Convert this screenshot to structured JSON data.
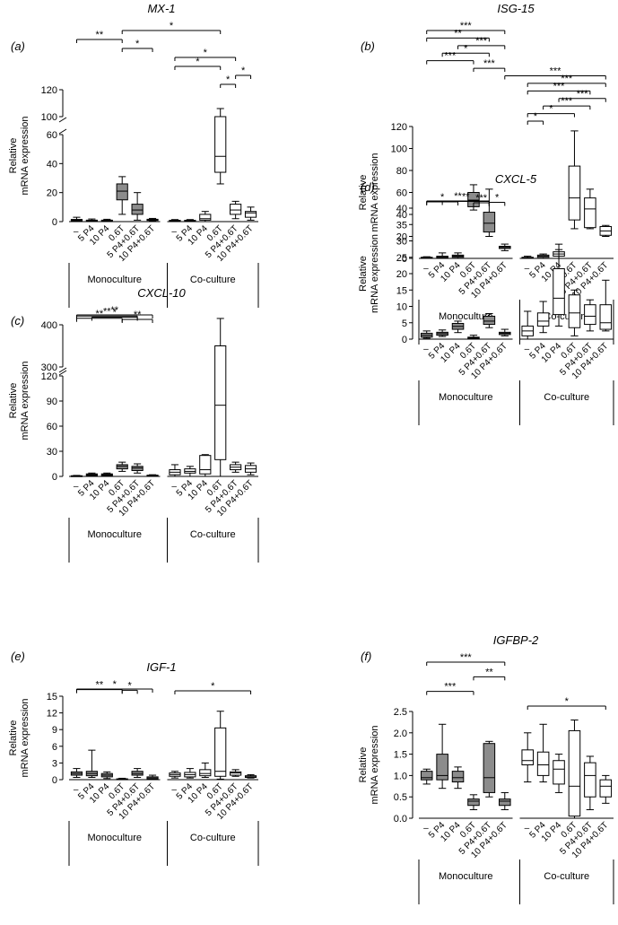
{
  "chart_data": [
    {
      "type": "box",
      "panel_label": "(a)",
      "title": "MX-1",
      "ylabel": [
        "Relative",
        "mRNA expression"
      ],
      "yaxis": {
        "break": true,
        "lower": [
          0,
          60
        ],
        "lower_ticks": [
          0,
          20,
          40,
          60
        ],
        "upper": [
          100,
          120
        ],
        "upper_ticks": [
          100,
          120
        ]
      },
      "categories": [
        "–",
        "5 P4",
        "10 P4",
        "0.6T",
        "5 P4+0.6T",
        "10 P4+0.6T"
      ],
      "groups": [
        {
          "name": "Monoculture",
          "fill": "#8c8c8c",
          "boxes": [
            [
              0,
              0.5,
              1,
              1.5,
              3
            ],
            [
              0,
              0.3,
              0.6,
              1,
              1.8
            ],
            [
              0,
              0.3,
              0.6,
              1,
              1.6
            ],
            [
              5,
              15,
              21,
              26,
              31
            ],
            [
              1,
              5,
              8,
              12,
              20
            ],
            [
              0.3,
              0.8,
              1.2,
              1.6,
              2.2
            ]
          ]
        },
        {
          "name": "Co-culture",
          "fill": "#ffffff",
          "boxes": [
            [
              0,
              0.3,
              0.6,
              0.9,
              1.4
            ],
            [
              0,
              0.3,
              0.6,
              0.9,
              1.4
            ],
            [
              0,
              1,
              2,
              5,
              7
            ],
            [
              26,
              34,
              45,
              70,
              106
            ],
            [
              2,
              5,
              8,
              12,
              14
            ],
            [
              1,
              3,
              6,
              7,
              10
            ]
          ]
        }
      ],
      "annotations": [
        {
          "from": 3,
          "to": 9,
          "label": "*"
        },
        {
          "from": 0,
          "to": 3,
          "label": "**"
        },
        {
          "from": 3,
          "to": 5,
          "label": "*"
        },
        {
          "from": 6,
          "to": 10,
          "label": "*"
        },
        {
          "from": 6,
          "to": 9,
          "label": "*"
        },
        {
          "from": 10,
          "to": 11,
          "label": "*"
        },
        {
          "from": 9,
          "to": 10,
          "label": "*"
        }
      ]
    },
    {
      "type": "box",
      "panel_label": "(b)",
      "title": "ISG-15",
      "ylabel": [
        "Relative",
        "mRNA expression"
      ],
      "yaxis": {
        "break": false,
        "range": [
          0,
          120
        ],
        "ticks": [
          0,
          20,
          40,
          60,
          80,
          100,
          120
        ]
      },
      "categories": [
        "–",
        "5 P4",
        "10 P4",
        "0.6T",
        "5 P4+0.6T",
        "10 P4+0.6T"
      ],
      "groups": [
        {
          "name": "Monoculture",
          "fill": "#8c8c8c",
          "boxes": [
            [
              0,
              0.3,
              0.6,
              1,
              1.5
            ],
            [
              0,
              0.5,
              1.5,
              2,
              5
            ],
            [
              0,
              1,
              2,
              3,
              5
            ],
            [
              44,
              47,
              53,
              60,
              67
            ],
            [
              20,
              24,
              32,
              42,
              63
            ],
            [
              7,
              9,
              10,
              11,
              13
            ]
          ]
        },
        {
          "name": "Co-culture",
          "fill": "#ffffff",
          "boxes": [
            [
              0,
              0.3,
              0.6,
              1,
              2
            ],
            [
              0,
              1,
              2,
              3,
              4
            ],
            [
              0,
              2,
              4,
              6,
              8
            ],
            [
              27,
              35,
              55,
              84,
              116
            ],
            [
              27,
              28,
              45,
              55,
              63
            ],
            [
              20,
              21,
              25,
              29,
              30
            ]
          ]
        }
      ],
      "annotations": [
        {
          "from": 0,
          "to": 5,
          "label": "***"
        },
        {
          "from": 0,
          "to": 4,
          "label": "**"
        },
        {
          "from": 2,
          "to": 5,
          "label": "***"
        },
        {
          "from": 1,
          "to": 4,
          "label": "*"
        },
        {
          "from": 0,
          "to": 3,
          "label": "***"
        },
        {
          "from": 3,
          "to": 5,
          "label": "***"
        },
        {
          "from": 5,
          "to": 11,
          "label": "***"
        },
        {
          "from": 6,
          "to": 11,
          "label": "***"
        },
        {
          "from": 6,
          "to": 10,
          "label": "***"
        },
        {
          "from": 8,
          "to": 11,
          "label": "***"
        },
        {
          "from": 7,
          "to": 10,
          "label": "***"
        },
        {
          "from": 6,
          "to": 9,
          "label": "*"
        },
        {
          "from": 6,
          "to": 7,
          "label": "*"
        }
      ]
    },
    {
      "type": "box",
      "panel_label": "(c)",
      "title": "CXCL-10",
      "ylabel": [
        "Relative",
        "mRNA expression"
      ],
      "yaxis": {
        "break": true,
        "lower": [
          0,
          120
        ],
        "lower_ticks": [
          0,
          30,
          60,
          90,
          120
        ],
        "upper": [
          300,
          400
        ],
        "upper_ticks": [
          300,
          400
        ]
      },
      "categories": [
        "–",
        "5 P4",
        "10 P4",
        "0.6T",
        "5 P4+0.6T",
        "10 P4+0.6T"
      ],
      "groups": [
        {
          "name": "Monoculture",
          "fill": "#8c8c8c",
          "boxes": [
            [
              0,
              0.2,
              0.5,
              0.8,
              1.2
            ],
            [
              0,
              1,
              2,
              3,
              4
            ],
            [
              0,
              1,
              2,
              3,
              4
            ],
            [
              6,
              9,
              12,
              14,
              17
            ],
            [
              4,
              7,
              10,
              12,
              15
            ],
            [
              0,
              0.5,
              1,
              1.5,
              2
            ]
          ]
        },
        {
          "name": "Co-culture",
          "fill": "#ffffff",
          "boxes": [
            [
              0,
              2,
              5,
              8,
              14
            ],
            [
              0,
              4,
              6,
              9,
              12
            ],
            [
              0,
              3,
              8,
              25,
              26
            ],
            [
              0,
              20,
              85,
              350,
              415
            ],
            [
              5,
              8,
              11,
              14,
              17
            ],
            [
              2,
              5,
              9,
              13,
              16
            ]
          ]
        }
      ],
      "annotations": [
        {
          "from": 0,
          "to": 5,
          "label": "**"
        },
        {
          "from": 0,
          "to": 4,
          "label": "**"
        },
        {
          "from": 1,
          "to": 4,
          "label": "*"
        },
        {
          "from": 0,
          "to": 3,
          "label": "**"
        },
        {
          "from": 3,
          "to": 5,
          "label": "**"
        }
      ]
    },
    {
      "type": "box",
      "panel_label": "(d)",
      "title": "CXCL-5",
      "ylabel": [
        "Relative",
        "mRNA expression"
      ],
      "yaxis": {
        "break": false,
        "range": [
          0,
          40
        ],
        "ticks": [
          0,
          5,
          10,
          15,
          20,
          25,
          30,
          35,
          40
        ]
      },
      "categories": [
        "–",
        "5 P4",
        "10 P4",
        "0.6T",
        "5 P4+0.6T",
        "10 P4+0.6T"
      ],
      "groups": [
        {
          "name": "Monoculture",
          "fill": "#8c8c8c",
          "boxes": [
            [
              0.3,
              0.6,
              1.2,
              1.8,
              2.5
            ],
            [
              0.8,
              1.2,
              1.7,
              2.1,
              2.8
            ],
            [
              2,
              3,
              3.9,
              4.8,
              5.5
            ],
            [
              0,
              0.2,
              0.4,
              0.6,
              1.2
            ],
            [
              3.5,
              4.5,
              5.5,
              7,
              7.8
            ],
            [
              1,
              1.4,
              1.8,
              2.1,
              3
            ]
          ]
        },
        {
          "name": "Co-culture",
          "fill": "#ffffff",
          "boxes": [
            [
              0,
              1,
              2.5,
              4,
              8.5
            ],
            [
              2,
              4,
              5.5,
              8,
              11.5
            ],
            [
              4,
              7.5,
              12.5,
              21.5,
              29
            ],
            [
              1,
              3.5,
              8,
              13.5,
              15
            ],
            [
              2.5,
              4.5,
              7,
              10.5,
              12
            ],
            [
              2.5,
              3,
              5,
              10.5,
              18
            ]
          ]
        }
      ],
      "annotations": [
        {
          "from": 0,
          "to": 4,
          "label": "**"
        },
        {
          "from": 1,
          "to": 4,
          "label": "**"
        },
        {
          "from": 0,
          "to": 2,
          "label": "*"
        },
        {
          "from": 4,
          "to": 5,
          "label": "*"
        },
        {
          "from": 3,
          "to": 4,
          "label": "***"
        }
      ]
    },
    {
      "type": "box",
      "panel_label": "(e)",
      "title": "IGF-1",
      "ylabel": [
        "Relative",
        "mRNA expression"
      ],
      "yaxis": {
        "break": false,
        "range": [
          0,
          15
        ],
        "ticks": [
          0,
          3,
          6,
          9,
          12,
          15
        ]
      },
      "categories": [
        "–",
        "5 P4",
        "10 P4",
        "0.6T",
        "5 P4+0.6T",
        "10 P4+0.6T"
      ],
      "groups": [
        {
          "name": "Monoculture",
          "fill": "#8c8c8c",
          "boxes": [
            [
              0.4,
              0.8,
              1.1,
              1.4,
              2
            ],
            [
              0.4,
              0.7,
              1.1,
              1.5,
              5.3
            ],
            [
              0.2,
              0.5,
              0.8,
              1.1,
              1.4
            ],
            [
              0,
              0.05,
              0.1,
              0.15,
              0.25
            ],
            [
              0.4,
              0.8,
              1.1,
              1.5,
              2
            ],
            [
              0,
              0.1,
              0.3,
              0.5,
              0.8
            ]
          ]
        },
        {
          "name": "Co-culture",
          "fill": "#ffffff",
          "boxes": [
            [
              0.3,
              0.6,
              0.9,
              1.2,
              1.5
            ],
            [
              0.3,
              0.5,
              0.9,
              1.3,
              2
            ],
            [
              0.4,
              0.7,
              1.1,
              1.8,
              3
            ],
            [
              0.1,
              0.6,
              1.5,
              9.3,
              12.3
            ],
            [
              0.6,
              0.8,
              1.2,
              1.4,
              1.8
            ],
            [
              0.3,
              0.4,
              0.6,
              0.7,
              0.9
            ]
          ]
        }
      ],
      "annotations": [
        {
          "from": 0,
          "to": 5,
          "label": "*"
        },
        {
          "from": 0,
          "to": 3,
          "label": "**"
        },
        {
          "from": 3,
          "to": 4,
          "label": "*"
        },
        {
          "from": 6,
          "to": 11,
          "label": "*"
        }
      ]
    },
    {
      "type": "box",
      "panel_label": "(f)",
      "title": "IGFBP-2",
      "ylabel": [
        "Relative",
        "mRNA expression"
      ],
      "yaxis": {
        "break": false,
        "range": [
          0,
          2.5
        ],
        "ticks": [
          "0.0",
          "0.5",
          "1.0",
          "1.5",
          "2.0",
          "2.5"
        ]
      },
      "categories": [
        "–",
        "5 P4",
        "10 P4",
        "0.6T",
        "5 P4+0.6T",
        "10 P4+0.6T"
      ],
      "groups": [
        {
          "name": "Monoculture",
          "fill": "#8c8c8c",
          "boxes": [
            [
              0.8,
              0.9,
              0.95,
              1.1,
              1.15
            ],
            [
              0.7,
              0.9,
              1.0,
              1.5,
              2.2
            ],
            [
              0.7,
              0.85,
              0.95,
              1.1,
              1.2
            ],
            [
              0.2,
              0.3,
              0.4,
              0.45,
              0.55
            ],
            [
              0.5,
              0.6,
              0.95,
              1.75,
              1.8
            ],
            [
              0.2,
              0.3,
              0.4,
              0.45,
              0.6
            ]
          ]
        },
        {
          "name": "Co-culture",
          "fill": "#ffffff",
          "boxes": [
            [
              0.85,
              1.25,
              1.35,
              1.6,
              2.0
            ],
            [
              0.85,
              1.0,
              1.25,
              1.55,
              2.2
            ],
            [
              0.6,
              0.8,
              1.15,
              1.35,
              1.5
            ],
            [
              0.0,
              0.05,
              0.75,
              2.05,
              2.3
            ],
            [
              0.2,
              0.5,
              1.0,
              1.3,
              1.45
            ],
            [
              0.35,
              0.5,
              0.75,
              0.9,
              1.0
            ]
          ]
        }
      ],
      "annotations": [
        {
          "from": 0,
          "to": 5,
          "label": "***"
        },
        {
          "from": 3,
          "to": 5,
          "label": "**"
        },
        {
          "from": 0,
          "to": 3,
          "label": "***"
        },
        {
          "from": 6,
          "to": 11,
          "label": "*"
        }
      ]
    }
  ]
}
